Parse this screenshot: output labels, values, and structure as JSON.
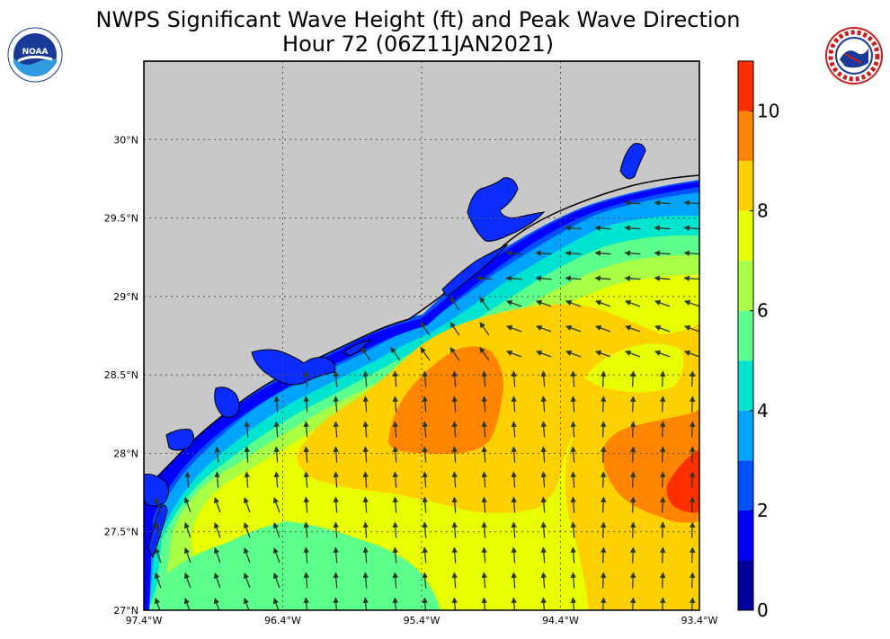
{
  "title": {
    "line1": "NWPS Significant Wave Height (ft) and Peak Wave Direction",
    "line2": "Hour 72 (06Z11JAN2021)"
  },
  "logos": {
    "left": "noaa-logo",
    "left_text": "NOAA",
    "right": "nws-logo",
    "right_text": "NATIONAL WEATHER SERVICE"
  },
  "colors": {
    "land": "#c8c8c8",
    "coast": "#000000",
    "arrow": "#2a3a2a",
    "grid": "#555555"
  },
  "chart_data": {
    "type": "heatmap",
    "variable": "Significant Wave Height (ft)",
    "x_axis": {
      "ticks": [
        "97.4°W",
        "96.4°W",
        "95.4°W",
        "94.4°W",
        "93.4°W"
      ],
      "range": [
        -97.4,
        -93.4
      ]
    },
    "y_axis": {
      "ticks": [
        "27°N",
        "27.5°N",
        "28°N",
        "28.5°N",
        "29°N",
        "29.5°N",
        "30°N"
      ],
      "range": [
        27.0,
        30.5
      ]
    },
    "grid": true,
    "colorbar": {
      "levels": [
        0,
        1,
        2,
        3,
        4,
        5,
        6,
        7,
        8,
        9,
        10,
        11
      ],
      "colors": [
        "#00009c",
        "#0000ff",
        "#0050ff",
        "#00a4ff",
        "#00e4d0",
        "#5cff8c",
        "#a8ff44",
        "#e8ff00",
        "#ffd000",
        "#ff8400",
        "#ff3000",
        "#c40000"
      ],
      "tick_labels": [
        "0",
        "2",
        "4",
        "6",
        "8",
        "10"
      ],
      "tick_values": [
        0,
        2,
        4,
        6,
        8,
        10
      ]
    },
    "features": [
      {
        "region": "offshore max near 95.1°W 28.2°N",
        "value_range": [
          8,
          9
        ]
      },
      {
        "region": "offshore max near 93.5°W 27.8°N",
        "value_range": [
          9,
          10
        ]
      },
      {
        "region": "nearshore bays and coastline",
        "value_range": [
          1,
          3
        ]
      },
      {
        "region": "southwest area near 96.5°W 27.3°N",
        "value_range": [
          5,
          6
        ]
      }
    ],
    "peak_wave_direction": "mostly toward north offshore, turning toward west/northwest near the upper Texas coast"
  }
}
